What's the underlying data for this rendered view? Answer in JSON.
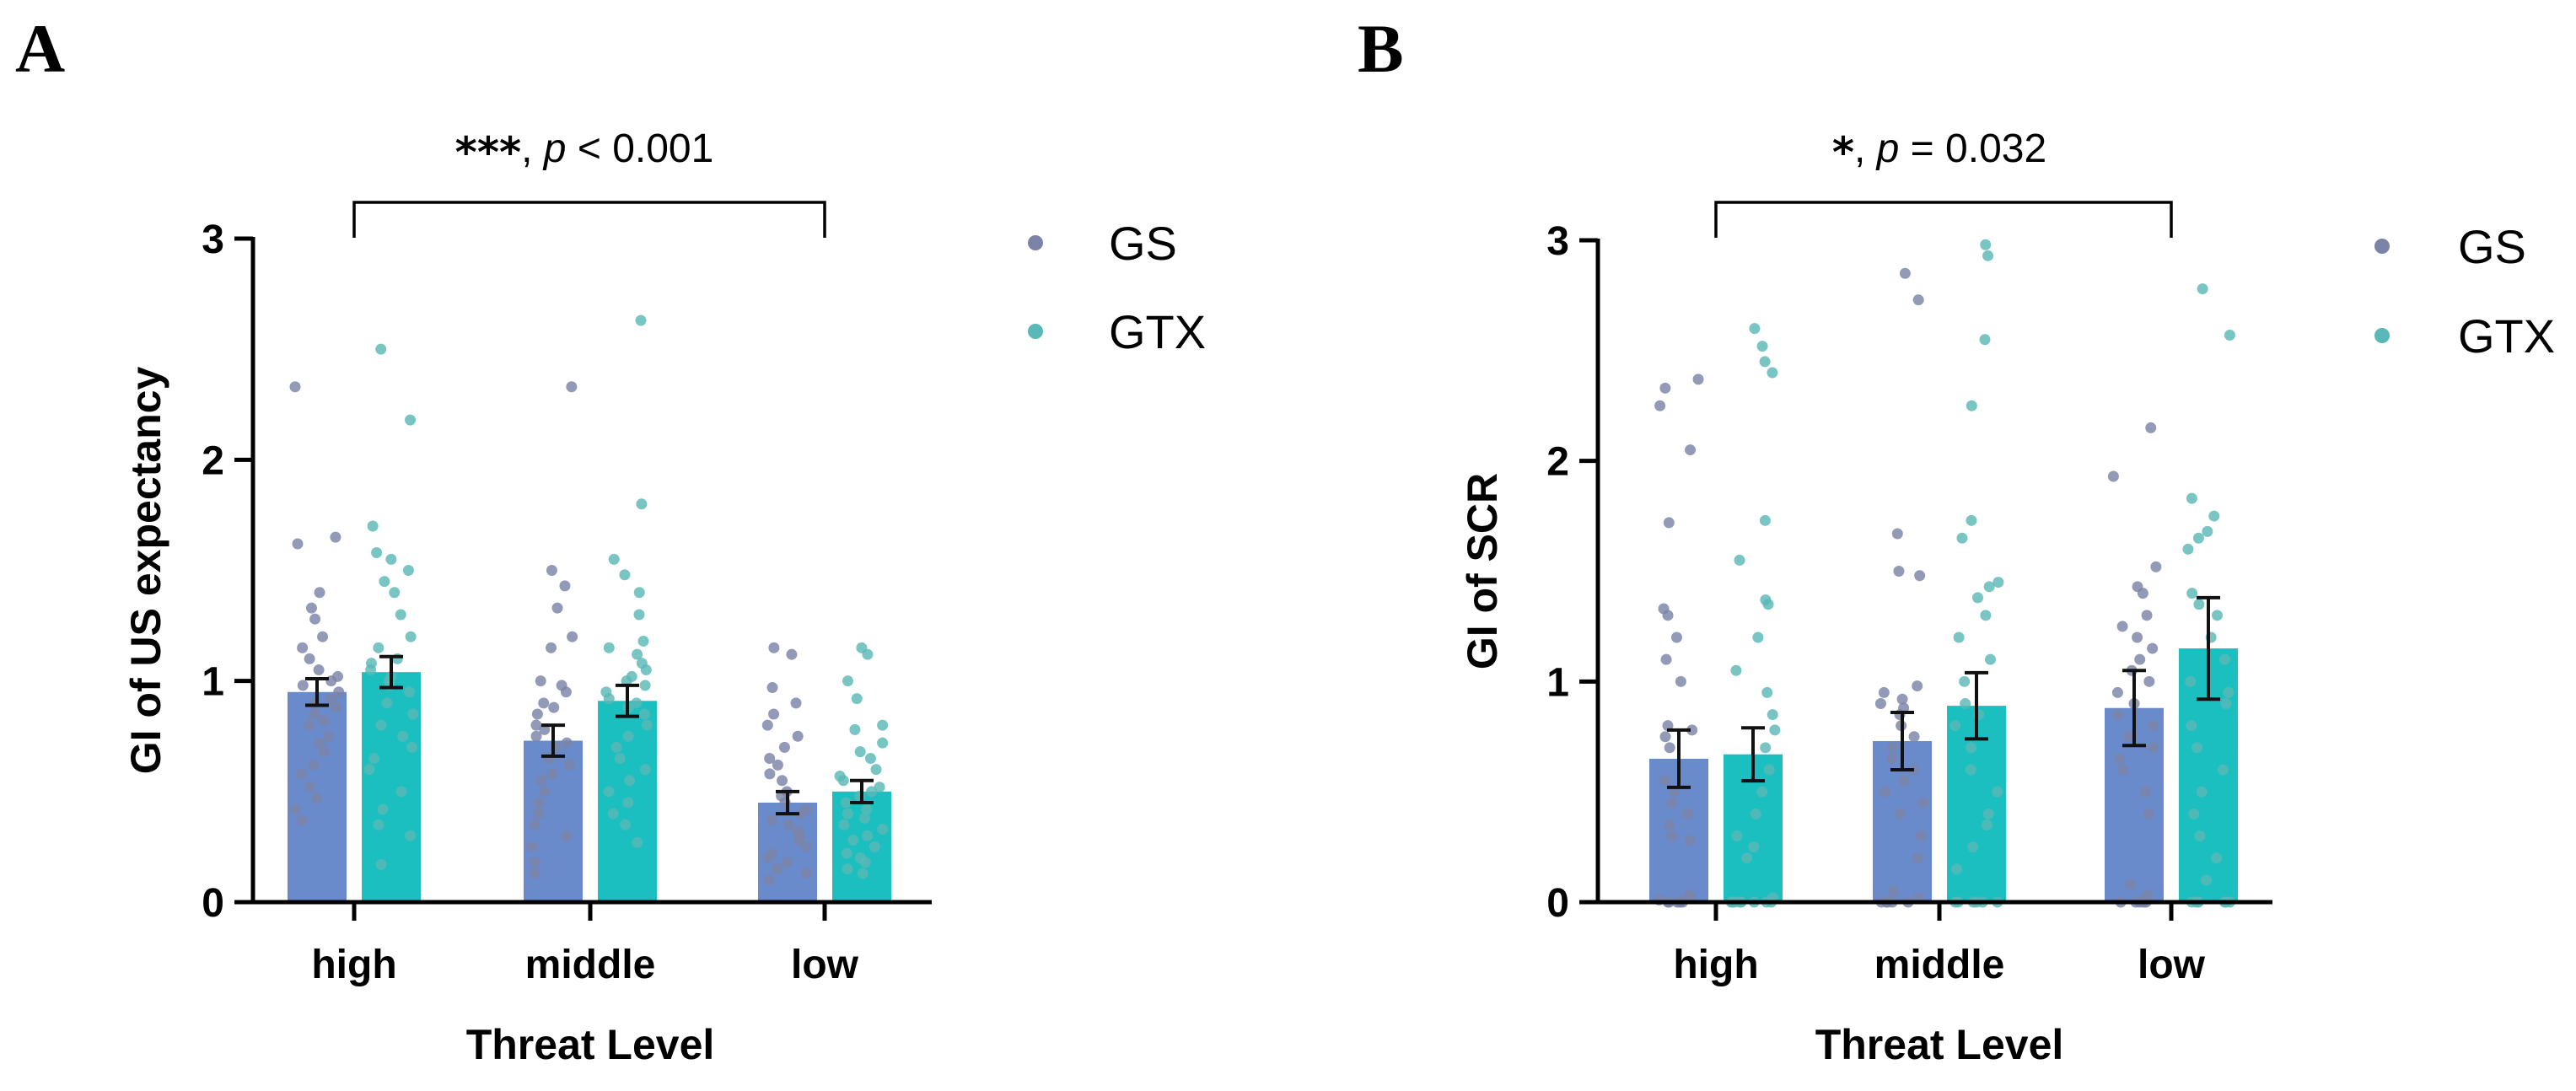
{
  "chart_data": [
    {
      "panel": "A",
      "type": "bar",
      "xlabel": "Threat Level",
      "ylabel": "GI of US expectancy",
      "categories": [
        "high",
        "middle",
        "low"
      ],
      "ylim": [
        0,
        3
      ],
      "yticks": [
        0,
        1,
        2,
        3
      ],
      "series": [
        {
          "name": "GS",
          "color": "#6a8bcb",
          "dot_color": "#7b84a8",
          "values": [
            0.95,
            0.73,
            0.45
          ],
          "sem": [
            0.06,
            0.07,
            0.05
          ],
          "points": [
            [
              2.33,
              1.65,
              1.62,
              1.4,
              1.33,
              1.28,
              1.2,
              1.15,
              1.1,
              1.05,
              1.02,
              1.0,
              0.98,
              0.95,
              0.92,
              0.9,
              0.88,
              0.85,
              0.82,
              0.8,
              0.75,
              0.72,
              0.68,
              0.62,
              0.58,
              0.52,
              0.47,
              0.42,
              0.37
            ],
            [
              2.33,
              1.5,
              1.43,
              1.33,
              1.2,
              1.15,
              1.0,
              0.98,
              0.95,
              0.9,
              0.88,
              0.85,
              0.8,
              0.78,
              0.75,
              0.72,
              0.7,
              0.65,
              0.62,
              0.58,
              0.55,
              0.5,
              0.45,
              0.4,
              0.35,
              0.3,
              0.25,
              0.18,
              0.13
            ],
            [
              1.15,
              1.12,
              0.97,
              0.9,
              0.85,
              0.8,
              0.75,
              0.7,
              0.65,
              0.62,
              0.58,
              0.55,
              0.5,
              0.48,
              0.45,
              0.42,
              0.4,
              0.37,
              0.35,
              0.32,
              0.3,
              0.28,
              0.25,
              0.22,
              0.2,
              0.18,
              0.15,
              0.13,
              0.1
            ]
          ]
        },
        {
          "name": "GTX",
          "color": "#1bbfc0",
          "dot_color": "#5ab8b6",
          "values": [
            1.04,
            0.91,
            0.5
          ],
          "sem": [
            0.07,
            0.07,
            0.05
          ],
          "points": [
            [
              2.5,
              2.18,
              1.7,
              1.58,
              1.55,
              1.5,
              1.45,
              1.4,
              1.3,
              1.2,
              1.15,
              1.1,
              1.08,
              1.05,
              1.02,
              1.0,
              0.98,
              0.95,
              0.9,
              0.85,
              0.8,
              0.75,
              0.7,
              0.65,
              0.6,
              0.5,
              0.42,
              0.35,
              0.3,
              0.17
            ],
            [
              2.63,
              1.8,
              1.55,
              1.48,
              1.4,
              1.3,
              1.18,
              1.15,
              1.12,
              1.08,
              1.05,
              1.02,
              1.0,
              0.98,
              0.95,
              0.92,
              0.9,
              0.88,
              0.85,
              0.8,
              0.75,
              0.7,
              0.65,
              0.6,
              0.55,
              0.5,
              0.45,
              0.4,
              0.35,
              0.27
            ],
            [
              1.15,
              1.12,
              1.0,
              0.92,
              0.8,
              0.78,
              0.72,
              0.68,
              0.65,
              0.6,
              0.57,
              0.55,
              0.52,
              0.5,
              0.48,
              0.45,
              0.42,
              0.4,
              0.38,
              0.35,
              0.33,
              0.3,
              0.28,
              0.25,
              0.22,
              0.2,
              0.18,
              0.15,
              0.13
            ]
          ]
        }
      ],
      "significance": {
        "stars": "***",
        "p_label": "p",
        "p_text": " < 0.001",
        "from": "high",
        "to": "low"
      }
    },
    {
      "panel": "B",
      "type": "bar",
      "xlabel": "Threat Level",
      "ylabel": "GI of SCR",
      "categories": [
        "high",
        "middle",
        "low"
      ],
      "ylim": [
        0,
        3
      ],
      "yticks": [
        0,
        1,
        2,
        3
      ],
      "series": [
        {
          "name": "GS",
          "color": "#6a8bcb",
          "dot_color": "#7b84a8",
          "values": [
            0.65,
            0.73,
            0.88
          ],
          "sem": [
            0.13,
            0.13,
            0.17
          ],
          "points": [
            [
              2.37,
              2.33,
              2.25,
              2.05,
              1.72,
              1.33,
              1.3,
              1.2,
              1.1,
              1.0,
              0.8,
              0.78,
              0.75,
              0.7,
              0.55,
              0.5,
              0.45,
              0.4,
              0.35,
              0.3,
              0.28,
              0.03,
              0.02,
              0.01,
              0.0,
              0.0,
              0.0,
              0.0,
              0.0
            ],
            [
              2.85,
              2.73,
              1.67,
              1.5,
              1.48,
              0.98,
              0.95,
              0.92,
              0.9,
              0.88,
              0.85,
              0.8,
              0.75,
              0.7,
              0.65,
              0.6,
              0.55,
              0.5,
              0.45,
              0.4,
              0.3,
              0.2,
              0.05,
              0.02,
              0.0,
              0.0,
              0.0,
              0.0,
              0.0
            ],
            [
              2.15,
              1.93,
              1.52,
              1.43,
              1.4,
              1.3,
              1.25,
              1.2,
              1.15,
              1.1,
              1.05,
              1.0,
              0.95,
              0.9,
              0.85,
              0.8,
              0.75,
              0.7,
              0.65,
              0.6,
              0.5,
              0.4,
              0.08,
              0.03,
              0.0,
              0.0,
              0.0,
              0.0,
              0.0
            ]
          ]
        },
        {
          "name": "GTX",
          "color": "#1bbfc0",
          "dot_color": "#5ab8b6",
          "values": [
            0.67,
            0.89,
            1.15
          ],
          "sem": [
            0.12,
            0.15,
            0.23
          ],
          "points": [
            [
              2.6,
              2.52,
              2.45,
              2.4,
              1.73,
              1.55,
              1.37,
              1.35,
              1.2,
              1.05,
              0.95,
              0.85,
              0.78,
              0.7,
              0.6,
              0.5,
              0.4,
              0.3,
              0.25,
              0.2,
              0.02,
              0.0,
              0.0,
              0.0,
              0.0,
              0.0,
              0.0,
              0.0,
              0.0
            ],
            [
              2.98,
              2.93,
              2.55,
              2.25,
              1.73,
              1.65,
              1.45,
              1.43,
              1.38,
              1.3,
              1.2,
              1.1,
              1.0,
              0.9,
              0.85,
              0.8,
              0.7,
              0.6,
              0.5,
              0.4,
              0.35,
              0.25,
              0.15,
              0.0,
              0.0,
              0.0,
              0.0,
              0.0,
              0.0
            ],
            [
              2.78,
              2.57,
              1.83,
              1.75,
              1.68,
              1.65,
              1.6,
              1.4,
              1.35,
              1.3,
              1.2,
              1.1,
              1.0,
              0.95,
              0.9,
              0.8,
              0.7,
              0.6,
              0.5,
              0.4,
              0.3,
              0.2,
              0.1,
              0.0,
              0.0,
              0.0,
              0.0,
              0.0,
              0.0
            ]
          ]
        }
      ],
      "significance": {
        "stars": "*",
        "p_label": "p",
        "p_text": " = 0.032",
        "from": "high",
        "to": "low"
      }
    }
  ]
}
